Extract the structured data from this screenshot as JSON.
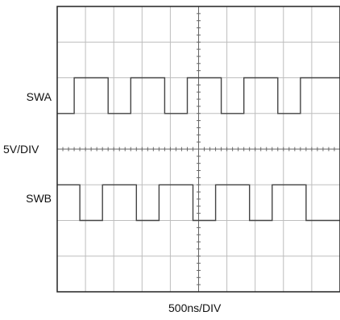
{
  "chart_data": {
    "type": "line",
    "title": "",
    "xlabel": "500ns/DIV",
    "ylabel": "5V/DIV",
    "grid": true,
    "x_divisions": 10,
    "y_divisions": 8,
    "series": [
      {
        "name": "SWA",
        "unit_x": "div",
        "low_div": 0,
        "high_div": 1,
        "baseline_div_from_top": 3,
        "transitions": [
          {
            "x": 0.6,
            "level": "high"
          },
          {
            "x": 1.8,
            "level": "low"
          },
          {
            "x": 2.6,
            "level": "high"
          },
          {
            "x": 3.8,
            "level": "low"
          },
          {
            "x": 4.6,
            "level": "high"
          },
          {
            "x": 5.8,
            "level": "low"
          },
          {
            "x": 6.6,
            "level": "high"
          },
          {
            "x": 7.8,
            "level": "low"
          },
          {
            "x": 8.6,
            "level": "high"
          }
        ],
        "start_level": "low"
      },
      {
        "name": "SWB",
        "unit_x": "div",
        "low_div": 0,
        "high_div": 1,
        "baseline_div_from_top": 6,
        "transitions": [
          {
            "x": 0.8,
            "level": "low"
          },
          {
            "x": 1.6,
            "level": "high"
          },
          {
            "x": 2.8,
            "level": "low"
          },
          {
            "x": 3.6,
            "level": "high"
          },
          {
            "x": 4.8,
            "level": "low"
          },
          {
            "x": 5.6,
            "level": "high"
          },
          {
            "x": 6.8,
            "level": "low"
          },
          {
            "x": 7.6,
            "level": "high"
          },
          {
            "x": 8.8,
            "level": "low"
          }
        ],
        "start_level": "high"
      }
    ]
  }
}
